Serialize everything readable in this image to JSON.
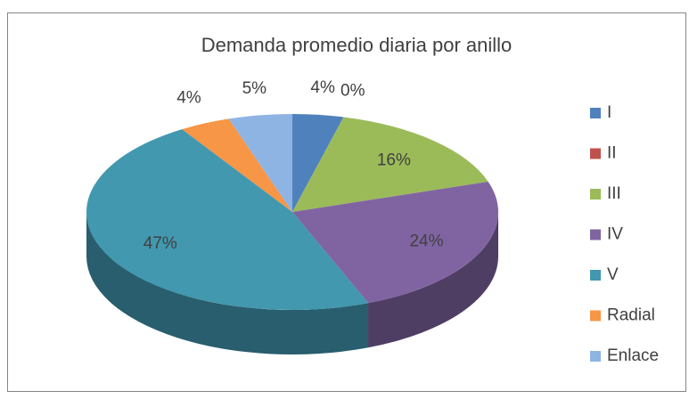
{
  "chart_data": {
    "type": "pie3d",
    "title": "Demanda promedio diaria por anillo",
    "categories": [
      "I",
      "II",
      "III",
      "IV",
      "V",
      "Radial",
      "Enlace"
    ],
    "values": [
      4,
      0,
      16,
      24,
      47,
      4,
      5
    ],
    "value_labels": [
      "4%",
      "0%",
      "16%",
      "24%",
      "47%",
      "4%",
      "5%"
    ],
    "colors": [
      "#4f81bd",
      "#c0504d",
      "#9bbb59",
      "#8064a2",
      "#4198af",
      "#f79646",
      "#8eb4e3"
    ],
    "legend": "right"
  }
}
